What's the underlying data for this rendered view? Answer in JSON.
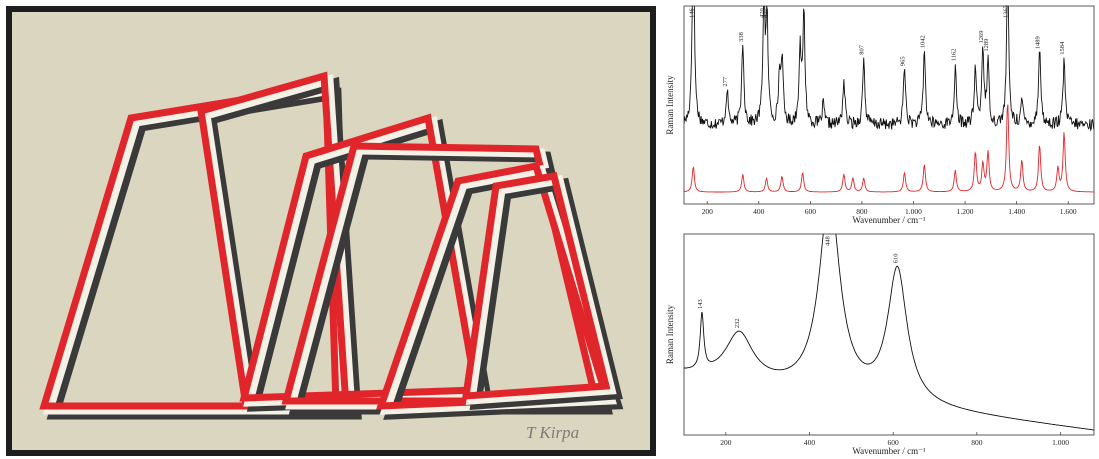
{
  "artwork": {
    "signature": "T Kirpa",
    "colors": {
      "paper": "#dad6bf",
      "border": "#1e1e1e",
      "red": "#e1262b",
      "dark": "#3a3a3a",
      "white": "#f4f1e6"
    }
  },
  "chart_data": [
    {
      "type": "line",
      "ylabel": "Raman Intensity",
      "xlabel": "Wavenumber / cm⁻¹",
      "xlim": [
        110,
        1700
      ],
      "xticks": [
        200,
        400,
        600,
        800,
        1000,
        1200,
        1400,
        1600
      ],
      "xtick_labels": [
        "200",
        "400",
        "600",
        "800",
        "1.000",
        "1.200",
        "1.400",
        "1.600"
      ],
      "peak_labels": [
        {
          "x": 146,
          "label": "146"
        },
        {
          "x": 277,
          "label": "277"
        },
        {
          "x": 338,
          "label": "338"
        },
        {
          "x": 420,
          "label": "420"
        },
        {
          "x": 432,
          "label": "432"
        },
        {
          "x": 807,
          "label": "807"
        },
        {
          "x": 965,
          "label": "965"
        },
        {
          "x": 1042,
          "label": "1042"
        },
        {
          "x": 1162,
          "label": "1162"
        },
        {
          "x": 1269,
          "label": "1269"
        },
        {
          "x": 1289,
          "label": "1289"
        },
        {
          "x": 1365,
          "label": "1365"
        },
        {
          "x": 1489,
          "label": "1489"
        },
        {
          "x": 1584,
          "label": "1584"
        }
      ],
      "series": [
        {
          "color": "#111111",
          "baseline": 0.4,
          "noise": 0.03,
          "peaks": [
            [
              146,
              1.0
            ],
            [
              277,
              0.18
            ],
            [
              338,
              0.42
            ],
            [
              420,
              0.62
            ],
            [
              432,
              0.5
            ],
            [
              480,
              0.22
            ],
            [
              490,
              0.32
            ],
            [
              560,
              0.38
            ],
            [
              575,
              0.55
            ],
            [
              650,
              0.1
            ],
            [
              730,
              0.22
            ],
            [
              807,
              0.33
            ],
            [
              965,
              0.3
            ],
            [
              1042,
              0.38
            ],
            [
              1162,
              0.28
            ],
            [
              1240,
              0.28
            ],
            [
              1269,
              0.38
            ],
            [
              1289,
              0.3
            ],
            [
              1365,
              0.75
            ],
            [
              1420,
              0.12
            ],
            [
              1489,
              0.4
            ],
            [
              1584,
              0.32
            ]
          ]
        },
        {
          "color": "#e1262b",
          "baseline": 0.06,
          "noise": 0.0,
          "peaks": [
            [
              146,
              0.13
            ],
            [
              338,
              0.09
            ],
            [
              430,
              0.07
            ],
            [
              490,
              0.08
            ],
            [
              570,
              0.1
            ],
            [
              730,
              0.09
            ],
            [
              765,
              0.07
            ],
            [
              807,
              0.07
            ],
            [
              965,
              0.1
            ],
            [
              1042,
              0.14
            ],
            [
              1162,
              0.11
            ],
            [
              1240,
              0.2
            ],
            [
              1269,
              0.14
            ],
            [
              1289,
              0.2
            ],
            [
              1365,
              0.46
            ],
            [
              1420,
              0.16
            ],
            [
              1489,
              0.24
            ],
            [
              1560,
              0.12
            ],
            [
              1584,
              0.3
            ]
          ]
        }
      ]
    },
    {
      "type": "line",
      "ylabel": "Raman Intensity",
      "xlabel": "Wavenumber / cm⁻¹",
      "xlim": [
        100,
        1080
      ],
      "xticks": [
        200,
        400,
        600,
        800,
        1000
      ],
      "xtick_labels": [
        "200",
        "400",
        "600",
        "800",
        "1.000"
      ],
      "peak_labels": [
        {
          "x": 143,
          "label": "143"
        },
        {
          "x": 232,
          "label": "232"
        },
        {
          "x": 448,
          "label": "448"
        },
        {
          "x": 610,
          "label": "610"
        }
      ],
      "series": [
        {
          "color": "#111111",
          "baseline_start": 0.3,
          "baseline_end": 0.02,
          "peaks": [
            [
              143,
              0.28,
              5
            ],
            [
              232,
              0.24,
              40
            ],
            [
              448,
              0.98,
              30
            ],
            [
              610,
              0.66,
              28
            ]
          ]
        }
      ]
    }
  ]
}
